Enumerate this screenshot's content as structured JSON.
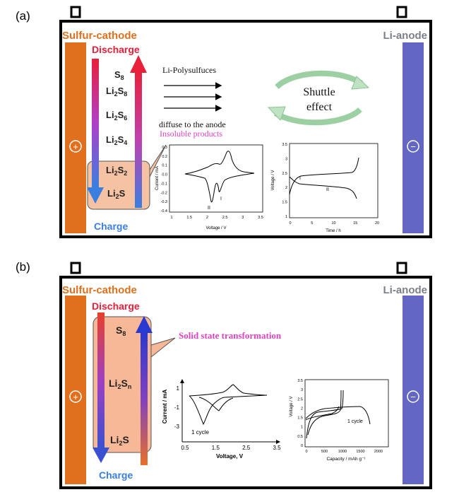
{
  "panel_a": {
    "label": "(a)",
    "cathode_label": "Sulfur-cathode",
    "anode_label": "Li-anode",
    "plus_symbol": "+",
    "minus_symbol": "−",
    "discharge_label": "Discharge",
    "charge_label": "Charge",
    "species": {
      "s8": {
        "main": "S",
        "sub": "8"
      },
      "li2s8": {
        "main1": "Li",
        "sub1": "2",
        "main2": "S",
        "sub2": "8"
      },
      "li2s6": {
        "main1": "Li",
        "sub1": "2",
        "main2": "S",
        "sub2": "6"
      },
      "li2s4": {
        "main1": "Li",
        "sub1": "2",
        "main2": "S",
        "sub2": "4"
      },
      "li2s2": {
        "main1": "Li",
        "sub1": "2",
        "main2": "S",
        "sub2": "2"
      },
      "li2s": {
        "main1": "Li",
        "sub1": "2",
        "main2": "S"
      }
    },
    "polysulfides_text": "Li-Polysulfuces",
    "diffuse_text": "diffuse to the anode",
    "insoluble_text": "Insoluble products",
    "shuttle_line1": "Shuttle",
    "shuttle_line2": "effect",
    "cv_plot": {
      "ylabel": "Current / mA",
      "xlabel": "Voltage / V",
      "yticks": [
        "0.3",
        "0.2",
        "0.1",
        "0.0",
        "-0.1",
        "-0.2",
        "-0.3",
        "-0.4"
      ],
      "xticks": [
        "1",
        "1.5",
        "2",
        "2.5",
        "3",
        "3.5"
      ],
      "peak_labels": [
        "II",
        "I"
      ]
    },
    "gcd_plot": {
      "ylabel": "Voltage / V",
      "xlabel": "Time / h",
      "yticks": [
        "3.5",
        "3",
        "2.5",
        "2",
        "1.5",
        "1"
      ],
      "xticks": [
        "0",
        "5",
        "10",
        "15",
        "20"
      ],
      "plateau_labels": [
        "I",
        "II"
      ]
    }
  },
  "panel_b": {
    "label": "(b)",
    "cathode_label": "Sulfur-cathode",
    "anode_label": "Li-anode",
    "plus_symbol": "+",
    "minus_symbol": "−",
    "discharge_label": "Discharge",
    "charge_label": "Charge",
    "species": {
      "s8": {
        "main": "S",
        "sub": "8"
      },
      "li2sn": {
        "main1": "Li",
        "sub1": "2",
        "main2": "S",
        "sub2": "n"
      },
      "li2s": {
        "main1": "Li",
        "sub1": "2",
        "main2": "S"
      }
    },
    "solid_text": "Solid state transformation",
    "cv_plot": {
      "ylabel": "Current / mA",
      "xlabel": "Voltage, V",
      "yticks": [
        "1",
        "-1",
        "-3"
      ],
      "xticks": [
        "0.5",
        "1.5",
        "2.5",
        "3.5"
      ],
      "annotation": "1 cycle"
    },
    "gcd_plot": {
      "ylabel": "Voltage / V",
      "xlabel": "Capacity / mAh g⁻¹",
      "yticks": [
        "3.5",
        "3",
        "2.5",
        "2",
        "1.5",
        "1",
        "0.5",
        "0"
      ],
      "xticks": [
        "0",
        "500",
        "1000",
        "1500",
        "2000"
      ],
      "annotation": "1 cycle"
    }
  },
  "colors": {
    "cathode_bar": "#e0701e",
    "anode_bar": "#6466c4",
    "cathode_text": "#e0701e",
    "anode_text": "#7a7f8a",
    "discharge_text": "#e8203a",
    "charge_text": "#3a7fe0",
    "insoluble_box": "#f6c2a4",
    "pink_text": "#e040c0",
    "shuttle_arrow": "#bfe3c2"
  }
}
